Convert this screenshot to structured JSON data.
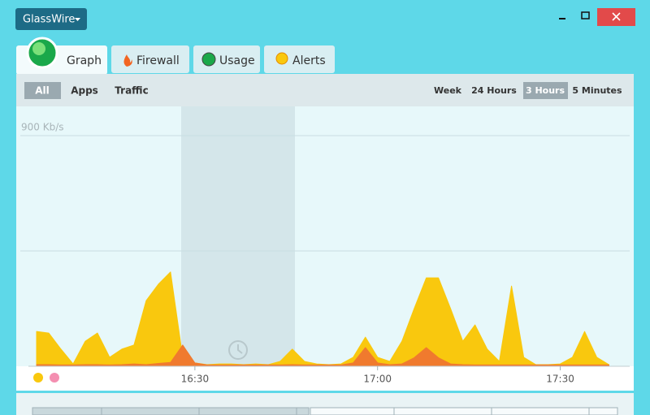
{
  "app": {
    "menu": "GlassWire"
  },
  "tabs": [
    "Graph",
    "Firewall",
    "Usage",
    "Alerts"
  ],
  "filters": [
    "All",
    "Apps",
    "Traffic"
  ],
  "ranges": [
    "Week",
    "24 Hours",
    "3 Hours",
    "5 Minutes"
  ],
  "chart_data": {
    "type": "area",
    "x": [
      964,
      966,
      968,
      970,
      972,
      974,
      976,
      978,
      980,
      982,
      984,
      986,
      988,
      990,
      992,
      994,
      996,
      998,
      1000,
      1002,
      1004,
      1006,
      1008,
      1010,
      1012,
      1014,
      1016,
      1018,
      1020,
      1022,
      1024,
      1026,
      1028,
      1030,
      1032,
      1034,
      1036,
      1038,
      1040,
      1042,
      1044,
      1046,
      1048,
      1050,
      1052,
      1054,
      1056,
      1058
    ],
    "series": [
      {
        "color": "#f9c80e",
        "values": [
          133,
          127,
          64,
          6,
          95,
          127,
          32,
          64,
          80,
          254,
          318,
          366,
          32,
          10,
          3,
          6,
          6,
          3,
          6,
          3,
          16,
          64,
          16,
          6,
          3,
          6,
          32,
          111,
          32,
          16,
          95,
          222,
          343,
          343,
          222,
          95,
          159,
          64,
          16,
          311,
          32,
          3,
          3,
          6,
          32,
          133,
          32,
          3
        ]
      },
      {
        "color": "#f07a2e",
        "values": [
          3,
          3,
          2,
          2,
          3,
          3,
          2,
          3,
          6,
          3,
          8,
          12,
          80,
          10,
          2,
          2,
          2,
          2,
          2,
          2,
          2,
          3,
          2,
          2,
          2,
          2,
          10,
          70,
          10,
          3,
          6,
          30,
          70,
          30,
          6,
          3,
          2,
          2,
          2,
          2,
          2,
          2,
          2,
          2,
          2,
          2,
          2,
          2
        ]
      }
    ],
    "xlim": [
      964,
      1059
    ],
    "ylim": [
      0,
      900
    ],
    "xticks": [
      {
        "value": 990,
        "label": "16:30"
      },
      {
        "value": 1020,
        "label": "17:00"
      },
      {
        "value": 1050,
        "label": "17:30"
      }
    ],
    "yticks": [
      {
        "value": 900,
        "label": "900 Kb/s"
      }
    ],
    "grid": true
  }
}
